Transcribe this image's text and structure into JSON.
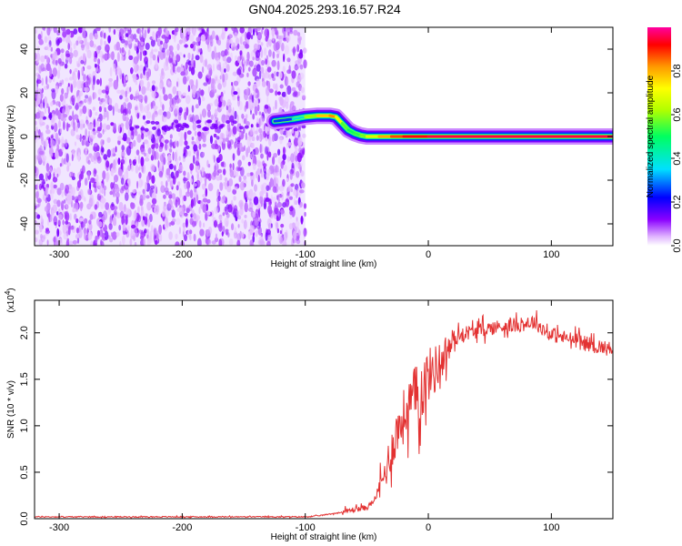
{
  "title": "GN04.2025.293.16.57.R24",
  "chart_data": [
    {
      "type": "heatmap",
      "xlabel": "Height of straight line (km)",
      "ylabel": "Frequency (Hz)",
      "xlim": [
        -320,
        150
      ],
      "ylim": [
        -50,
        50
      ],
      "xticks": [
        -300,
        -200,
        -100,
        0,
        100
      ],
      "yticks": [
        -40,
        -20,
        0,
        20,
        40
      ],
      "colorbar": {
        "label": "Normalized spectral amplitude",
        "range": [
          0,
          1
        ],
        "ticks": [
          "0.0",
          "0.2",
          "0.4",
          "0.6",
          "0.8"
        ],
        "tick_values": [
          0,
          0.2,
          0.4,
          0.6,
          0.8
        ]
      },
      "noise_region_x": [
        -320,
        -100
      ],
      "ridge": {
        "x": [
          -125,
          -110,
          -100,
          -90,
          -80,
          -75,
          -70,
          -65,
          -60,
          -55,
          -50,
          -40,
          -30,
          -20,
          0,
          50,
          100,
          150
        ],
        "freq": [
          7,
          8,
          9,
          9.5,
          9.5,
          9,
          6,
          3,
          1.5,
          0.5,
          0,
          0,
          0,
          0,
          0,
          0,
          0,
          0
        ],
        "amplitude": [
          0.2,
          0.3,
          0.5,
          0.7,
          0.85,
          0.8,
          0.6,
          0.5,
          0.5,
          0.55,
          0.6,
          0.75,
          0.85,
          0.9,
          0.95,
          0.95,
          0.95,
          0.95
        ]
      }
    },
    {
      "type": "line",
      "xlabel": "Height of straight line (km)",
      "ylabel": "SNR (10 * v/v)",
      "y_multiplier": "(x10",
      "y_multiplier_exp": "4",
      "y_multiplier_close": ")",
      "xlim": [
        -320,
        150
      ],
      "ylim": [
        0,
        2.35
      ],
      "xticks": [
        -300,
        -200,
        -100,
        0,
        100
      ],
      "yticks": [
        "0.0",
        "0.5",
        "1.0",
        "1.5",
        "2.0"
      ],
      "ytick_values": [
        0,
        0.5,
        1,
        1.5,
        2
      ],
      "color": "#e33232",
      "series": [
        {
          "x": [
            -320,
            -100,
            -90,
            -80,
            -70,
            -60,
            -50,
            -45,
            -40,
            -35,
            -30,
            -25,
            -20,
            -15,
            -10,
            -5,
            0,
            5,
            10,
            15,
            20,
            25,
            30,
            40,
            50,
            60,
            70,
            80,
            85,
            90,
            95,
            100,
            110,
            120,
            130,
            140,
            150
          ],
          "y": [
            0.02,
            0.02,
            0.03,
            0.05,
            0.07,
            0.1,
            0.12,
            0.18,
            0.3,
            0.5,
            0.75,
            0.95,
            1.1,
            1.22,
            1.3,
            1.4,
            1.55,
            1.6,
            1.7,
            1.8,
            1.9,
            1.97,
            2.0,
            2.02,
            2.05,
            2.07,
            2.08,
            2.1,
            2.12,
            2.08,
            2.02,
            1.98,
            1.95,
            1.92,
            1.88,
            1.85,
            1.82
          ]
        }
      ]
    }
  ]
}
